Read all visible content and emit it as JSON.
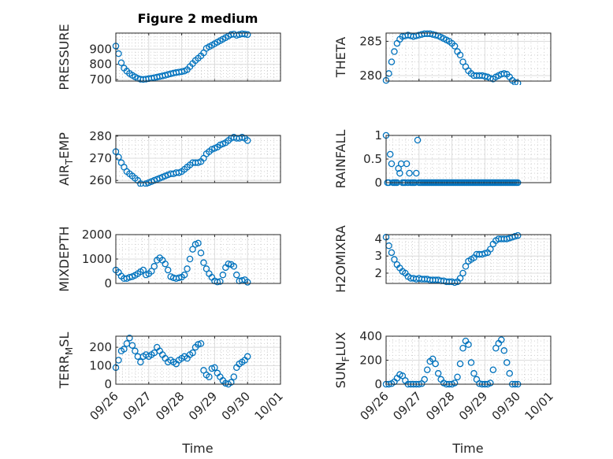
{
  "figure": {
    "title": "Figure 2 medium",
    "xlabel": "Time",
    "marker_color": "#0072BD"
  },
  "chart_data": [
    {
      "type": "scatter",
      "ylabel": "PRESSURE",
      "x_start": "09/26 00:00",
      "x_step_hours": 2,
      "ylim": [
        690,
        1005
      ],
      "yticks": [
        700,
        800,
        900
      ],
      "xlim": [
        "09/26",
        "10/01"
      ],
      "xticks": [
        "09/26",
        "09/27",
        "09/28",
        "09/29",
        "09/30",
        "10/01"
      ],
      "y": [
        920,
        870,
        810,
        775,
        755,
        740,
        728,
        718,
        708,
        702,
        701,
        703,
        706,
        709,
        712,
        716,
        720,
        724,
        728,
        733,
        738,
        742,
        746,
        749,
        752,
        756,
        765,
        785,
        805,
        825,
        840,
        855,
        875,
        905,
        915,
        925,
        935,
        945,
        955,
        965,
        975,
        985,
        995,
        998,
        990,
        995,
        1000,
        998,
        995
      ]
    },
    {
      "type": "scatter",
      "ylabel": "THETA",
      "x_start": "09/26 00:00",
      "x_step_hours": 2,
      "ylim": [
        279.2,
        286.2
      ],
      "yticks": [
        280,
        285
      ],
      "xlim": [
        "09/26",
        "10/01"
      ],
      "xticks": [
        "09/26",
        "09/27",
        "09/28",
        "09/29",
        "09/30",
        "10/01"
      ],
      "y": [
        279.3,
        280.3,
        282,
        283.5,
        284.7,
        285.3,
        285.7,
        285.8,
        285.9,
        285.8,
        285.7,
        285.8,
        285.9,
        286,
        286.1,
        286.1,
        286.1,
        286,
        285.9,
        285.8,
        285.6,
        285.4,
        285.2,
        285,
        284.7,
        284.3,
        283.5,
        283,
        282,
        281.3,
        280.7,
        280.3,
        280,
        280,
        280,
        280,
        279.9,
        279.8,
        279.6,
        279.5,
        279.8,
        280,
        280.2,
        280.3,
        280.2,
        279.8,
        279.3,
        279,
        278.9
      ]
    },
    {
      "type": "scatter",
      "ylabel": "AIR_TEMP",
      "x_start": "09/26 00:00",
      "x_step_hours": 2,
      "ylim": [
        259,
        280.3
      ],
      "yticks": [
        260,
        270,
        280
      ],
      "xlim": [
        "09/26",
        "10/01"
      ],
      "xticks": [
        "09/26",
        "09/27",
        "09/28",
        "09/29",
        "09/30",
        "10/01"
      ],
      "y": [
        273,
        270.5,
        268,
        266,
        264,
        263,
        262,
        261,
        260,
        258.5,
        258,
        258.5,
        259,
        259.5,
        260,
        260.5,
        261,
        261.5,
        262,
        262.5,
        263,
        263,
        263.5,
        263.5,
        264,
        265,
        266,
        267,
        268,
        268,
        268,
        268.5,
        270,
        272,
        273,
        274,
        274.5,
        275,
        276,
        276.5,
        277,
        278,
        279,
        279.5,
        279,
        279,
        279.5,
        279,
        278
      ]
    },
    {
      "type": "scatter",
      "ylabel": "RAINFALL",
      "x_start": "09/26 00:00",
      "x_step_hours": 1,
      "ylim": [
        0,
        1
      ],
      "yticks": [
        0,
        0.5,
        1
      ],
      "xlim": [
        "09/26",
        "10/01"
      ],
      "xticks": [
        "09/26",
        "09/27",
        "09/28",
        "09/29",
        "09/30",
        "10/01"
      ],
      "y": [
        1,
        0,
        0,
        0.6,
        0.4,
        0,
        0,
        0,
        0,
        0.3,
        0.2,
        0.4,
        0,
        0,
        0,
        0.4,
        0,
        0.2,
        0,
        0,
        0,
        0,
        0.2,
        0.9,
        0,
        0,
        0,
        0,
        0,
        0,
        0,
        0,
        0,
        0,
        0,
        0,
        0,
        0,
        0,
        0,
        0,
        0,
        0,
        0,
        0,
        0,
        0,
        0,
        0,
        0,
        0,
        0,
        0,
        0,
        0,
        0,
        0,
        0,
        0,
        0,
        0,
        0,
        0,
        0,
        0,
        0,
        0,
        0,
        0,
        0,
        0,
        0,
        0,
        0,
        0,
        0,
        0,
        0,
        0,
        0,
        0,
        0,
        0,
        0,
        0,
        0,
        0,
        0,
        0,
        0,
        0,
        0,
        0,
        0,
        0,
        0,
        0
      ]
    },
    {
      "type": "scatter",
      "ylabel": "MIXDEPTH",
      "x_start": "09/26 00:00",
      "x_step_hours": 2,
      "ylim": [
        0,
        2000
      ],
      "yticks": [
        0,
        1000,
        2000
      ],
      "xlim": [
        "09/26",
        "10/01"
      ],
      "xticks": [
        "09/26",
        "09/27",
        "09/28",
        "09/29",
        "09/30",
        "10/01"
      ],
      "y": [
        550,
        450,
        300,
        200,
        200,
        250,
        280,
        330,
        400,
        480,
        550,
        350,
        400,
        500,
        700,
        950,
        1050,
        950,
        800,
        550,
        280,
        230,
        200,
        230,
        260,
        350,
        600,
        1000,
        1400,
        1600,
        1650,
        1250,
        850,
        600,
        400,
        250,
        100,
        60,
        80,
        350,
        650,
        800,
        780,
        700,
        350,
        100,
        120,
        150,
        50
      ]
    },
    {
      "type": "scatter",
      "ylabel": "H2OMIXRA",
      "x_start": "09/26 00:00",
      "x_step_hours": 2,
      "ylim": [
        1.4,
        4.25
      ],
      "yticks": [
        2,
        3,
        4
      ],
      "xlim": [
        "09/26",
        "10/01"
      ],
      "xticks": [
        "09/26",
        "09/27",
        "09/28",
        "09/29",
        "09/30",
        "10/01"
      ],
      "y": [
        4.1,
        3.6,
        3.2,
        2.8,
        2.5,
        2.3,
        2.1,
        2.0,
        1.8,
        1.7,
        1.7,
        1.65,
        1.7,
        1.65,
        1.65,
        1.65,
        1.6,
        1.6,
        1.6,
        1.6,
        1.55,
        1.55,
        1.5,
        1.5,
        1.5,
        1.45,
        1.5,
        1.7,
        2.0,
        2.4,
        2.7,
        2.8,
        2.9,
        3.1,
        3.1,
        3.1,
        3.15,
        3.2,
        3.4,
        3.7,
        3.9,
        4.0,
        4.0,
        4.0,
        4.0,
        4.05,
        4.1,
        4.15,
        4.2
      ]
    },
    {
      "type": "scatter",
      "ylabel": "TERR_MSL",
      "x_start": "09/26 00:00",
      "x_step_hours": 2,
      "ylim": [
        0,
        260
      ],
      "yticks": [
        0,
        100,
        200
      ],
      "xlim": [
        "09/26",
        "10/01"
      ],
      "xticks": [
        "09/26",
        "09/27",
        "09/28",
        "09/29",
        "09/30",
        "10/01"
      ],
      "y": [
        90,
        130,
        180,
        190,
        220,
        250,
        210,
        180,
        150,
        120,
        150,
        160,
        150,
        160,
        170,
        200,
        180,
        160,
        140,
        120,
        130,
        120,
        110,
        130,
        140,
        150,
        140,
        160,
        170,
        200,
        215,
        220,
        75,
        50,
        40,
        85,
        90,
        60,
        40,
        20,
        5,
        0,
        10,
        40,
        90,
        110,
        120,
        130,
        150
      ]
    },
    {
      "type": "scatter",
      "ylabel": "SUN_FLUX",
      "x_start": "09/26 00:00",
      "x_step_hours": 2,
      "ylim": [
        0,
        400
      ],
      "yticks": [
        0,
        200,
        400
      ],
      "xlim": [
        "09/26",
        "10/01"
      ],
      "xticks": [
        "09/26",
        "09/27",
        "09/28",
        "09/29",
        "09/30",
        "10/01"
      ],
      "y": [
        0,
        0,
        5,
        20,
        50,
        80,
        70,
        30,
        0,
        0,
        0,
        0,
        0,
        5,
        40,
        120,
        190,
        210,
        170,
        90,
        40,
        10,
        0,
        0,
        0,
        10,
        60,
        170,
        300,
        360,
        330,
        180,
        90,
        40,
        5,
        0,
        0,
        0,
        10,
        120,
        300,
        340,
        370,
        280,
        180,
        90,
        0,
        0,
        0
      ]
    }
  ]
}
